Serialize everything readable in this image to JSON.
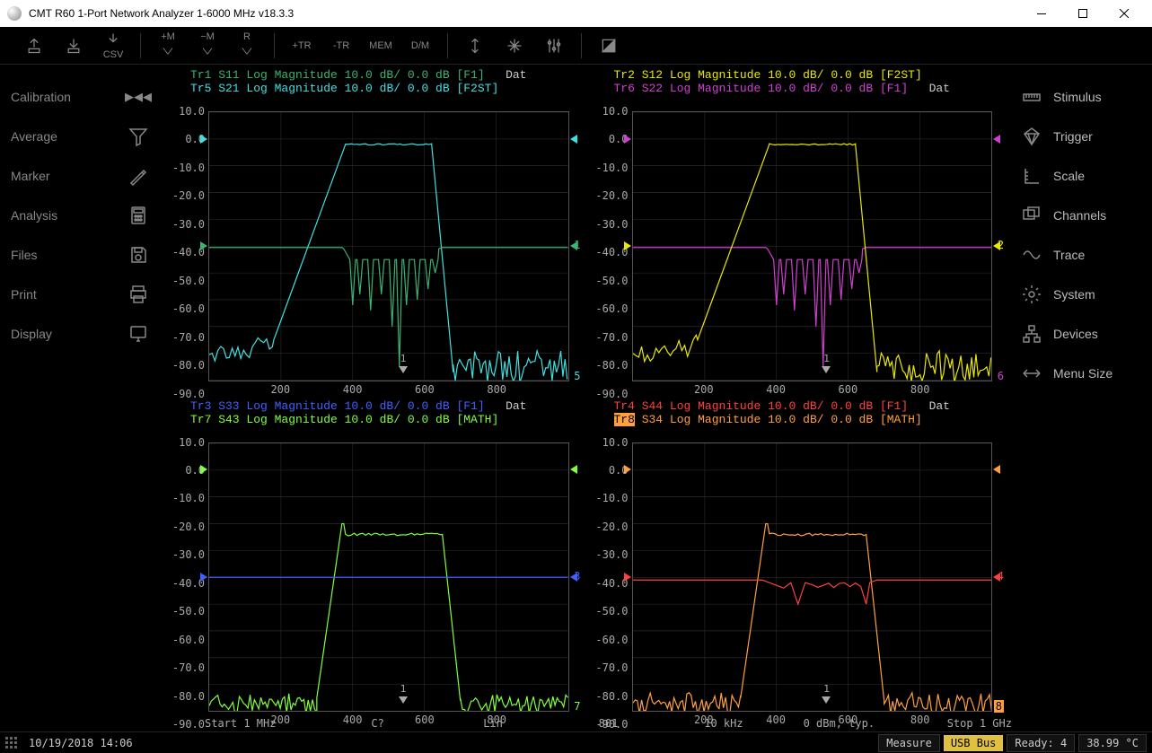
{
  "window": {
    "title": "CMT  R60 1-Port Network Analyzer  1-6000 MHz  v18.3.3"
  },
  "toolbar_text_buttons": {
    "csv": "CSV",
    "plus_m": "+M",
    "minus_m": "−M",
    "r": "R",
    "plus_tr": "+TR",
    "minus_tr": "-TR",
    "mem": "MEM",
    "dm": "D/M"
  },
  "left_menu": {
    "items": [
      {
        "label": "Calibration"
      },
      {
        "label": "Average"
      },
      {
        "label": "Marker"
      },
      {
        "label": "Analysis"
      },
      {
        "label": "Files"
      },
      {
        "label": "Print"
      },
      {
        "label": "Display"
      }
    ]
  },
  "right_menu": {
    "items": [
      {
        "label": "Stimulus"
      },
      {
        "label": "Trigger"
      },
      {
        "label": "Scale"
      },
      {
        "label": "Channels"
      },
      {
        "label": "Trace"
      },
      {
        "label": "System"
      },
      {
        "label": "Devices"
      },
      {
        "label": "Menu Size"
      }
    ]
  },
  "colors": {
    "bg": "#000000",
    "grid": "#555555",
    "text": "#aaaaaa",
    "tr1": "#3cb371",
    "tr2": "#e8e800",
    "tr3": "#4060ff",
    "tr4": "#ff4040",
    "tr5": "#40e0e0",
    "tr6": "#d040d0",
    "tr7": "#80ff40",
    "tr8": "#ffa040"
  },
  "axes": {
    "ylim": [
      -90,
      10
    ],
    "yticks": [
      10,
      0,
      -10,
      -20,
      -30,
      -40,
      -50,
      -60,
      -70,
      -80,
      -90
    ],
    "xlim": [
      0,
      1000
    ],
    "xticks": [
      200,
      400,
      600,
      800
    ],
    "ref_level": -40
  },
  "plots": [
    {
      "id": 1,
      "header1": {
        "tr": "Tr1",
        "param": "S11",
        "fmt": "Log Magnitude",
        "scale": "10.0 dB/",
        "ref": "0.0 dB",
        "tag": "[F1]",
        "extra": "Dat",
        "color": "#3cb371"
      },
      "header2": {
        "tr": "Tr5",
        "param": "S21",
        "fmt": "Log Magnitude",
        "scale": "10.0 dB/",
        "ref": "0.0 dB",
        "tag": "[F2ST]",
        "extra": "",
        "color": "#40e0e0"
      },
      "trace_a": {
        "color": "#3cb371",
        "kind": "flat_with_dips",
        "num_right": "1"
      },
      "trace_b": {
        "color": "#40e0e0",
        "kind": "bandpass_noisy",
        "num_right": "5"
      },
      "marker_x": 540
    },
    {
      "id": 2,
      "header1": {
        "tr": "Tr2",
        "param": "S12",
        "fmt": "Log Magnitude",
        "scale": "10.0 dB/",
        "ref": "0.0 dB",
        "tag": "[F2ST]",
        "extra": "",
        "color": "#e8e800"
      },
      "header2": {
        "tr": "Tr6",
        "param": "S22",
        "fmt": "Log Magnitude",
        "scale": "10.0 dB/",
        "ref": "0.0 dB",
        "tag": "[F1]",
        "extra": "Dat",
        "color": "#d040d0"
      },
      "trace_a": {
        "color": "#e8e800",
        "kind": "bandpass_noisy",
        "num_right": "2"
      },
      "trace_b": {
        "color": "#d040d0",
        "kind": "flat_with_dips",
        "num_right": "6"
      },
      "marker_x": 540
    },
    {
      "id": 3,
      "header1": {
        "tr": "Tr3",
        "param": "S33",
        "fmt": "Log Magnitude",
        "scale": "10.0 dB/",
        "ref": "0.0 dB",
        "tag": "[F1]",
        "extra": "Dat",
        "color": "#4060ff"
      },
      "header2": {
        "tr": "Tr7",
        "param": "S43",
        "fmt": "Log Magnitude",
        "scale": "10.0 dB/",
        "ref": "0.0 dB",
        "tag": "[MATH]",
        "extra": "",
        "color": "#80ff40"
      },
      "trace_a": {
        "color": "#4060ff",
        "kind": "flat_ref",
        "num_right": "3"
      },
      "trace_b": {
        "color": "#80ff40",
        "kind": "bandpass_shelf",
        "num_right": "7"
      },
      "marker_x": 540
    },
    {
      "id": 4,
      "header1": {
        "tr": "Tr4",
        "param": "S44",
        "fmt": "Log Magnitude",
        "scale": "10.0 dB/",
        "ref": "0.0 dB",
        "tag": "[F1]",
        "extra": "Dat",
        "color": "#ff4040"
      },
      "header2": {
        "tr": "Tr8",
        "param": "S34",
        "fmt": "Log Magnitude",
        "scale": "10.0 dB/",
        "ref": "0.0 dB",
        "tag": "[MATH]",
        "extra": "",
        "color": "#ffa040",
        "highlight": true
      },
      "trace_a": {
        "color": "#ff4040",
        "kind": "flat_ref_dip",
        "num_right": "4"
      },
      "trace_b": {
        "color": "#ffa040",
        "kind": "bandpass_shelf",
        "num_right": "8",
        "num_highlight": true
      },
      "marker_x": 540
    }
  ],
  "bottom_info": {
    "left": "Start 1 MHz",
    "c": "C?",
    "lin": "Lin",
    "n": "801",
    "ifbw": "10 kHz",
    "pwr": "0 dBm, typ.",
    "right": "Stop 1 GHz"
  },
  "status": {
    "datetime": "10/19/2018 14:06",
    "measure": "Measure",
    "usb": "USB Bus",
    "ready": "Ready: 4",
    "temp": "38.99 °C"
  }
}
